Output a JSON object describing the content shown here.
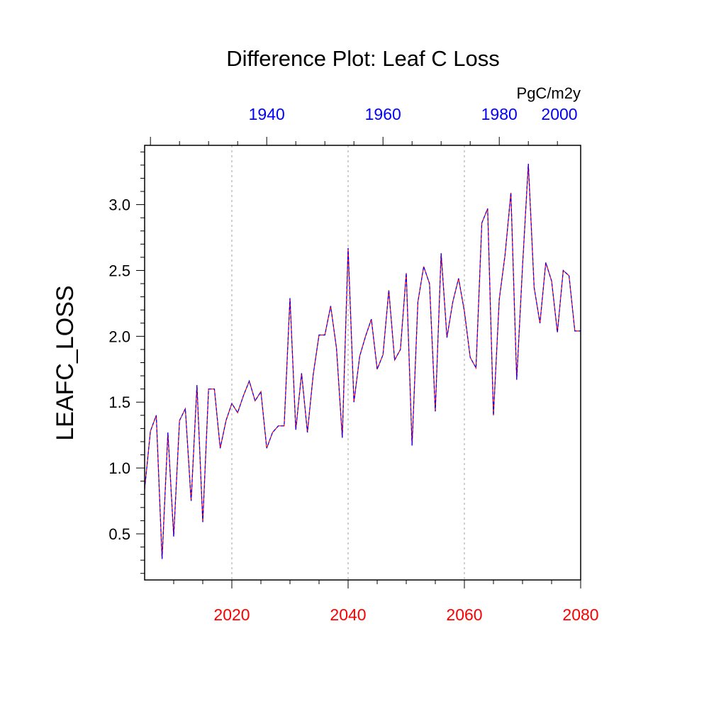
{
  "chart_data": {
    "type": "line",
    "title": "Difference Plot: Leaf C Loss",
    "units": "PgC/m2y",
    "ylabel": "LEAFC_LOSS",
    "xlabel": "",
    "xlim": [
      2005,
      2080
    ],
    "ylim": [
      0.15,
      3.45
    ],
    "x_ticks_bottom": [
      2020,
      2040,
      2060,
      2080
    ],
    "x_ticks_top": [
      {
        "label": "1940",
        "at": 2026
      },
      {
        "label": "1960",
        "at": 2046
      },
      {
        "label": "1980",
        "at": 2066
      },
      {
        "label": "2000",
        "at": 2086
      }
    ],
    "y_ticks": [
      {
        "value": 0.5,
        "label": "0.5"
      },
      {
        "value": 1.0,
        "label": "1.0"
      },
      {
        "value": 1.5,
        "label": "1.5"
      },
      {
        "value": 2.0,
        "label": "2.0"
      },
      {
        "value": 2.5,
        "label": "2.5"
      },
      {
        "value": 3.0,
        "label": "3.0"
      }
    ],
    "grid": "vertical dotted at bottom major ticks",
    "colors": {
      "bottom_axis": "#ff0000",
      "top_axis": "#0000ff",
      "series_a": "#ff0000",
      "series_b": "#0000ff",
      "axes": "#000000",
      "grid": "#a0a0a0"
    },
    "series": [
      {
        "x": [
          2005,
          2006,
          2007,
          2008,
          2009,
          2010,
          2011,
          2012,
          2013,
          2014,
          2015,
          2016,
          2017,
          2018,
          2019,
          2020,
          2021,
          2022,
          2023,
          2024,
          2025,
          2026,
          2027,
          2028,
          2029,
          2030,
          2031,
          2032,
          2033,
          2034,
          2035,
          2036,
          2037,
          2038,
          2039,
          2040,
          2041,
          2042,
          2043,
          2044,
          2045,
          2046,
          2047,
          2048,
          2049,
          2050,
          2051,
          2052,
          2053,
          2054,
          2055,
          2056,
          2057,
          2058,
          2059,
          2060,
          2061,
          2062,
          2063,
          2064,
          2065,
          2066,
          2067,
          2068,
          2069,
          2070,
          2071,
          2072,
          2073,
          2074,
          2075,
          2076,
          2077,
          2078,
          2079,
          2080
        ],
        "values": [
          0.84,
          1.28,
          1.4,
          0.31,
          1.27,
          0.48,
          1.36,
          1.45,
          0.75,
          1.63,
          0.59,
          1.6,
          1.6,
          1.15,
          1.36,
          1.49,
          1.42,
          1.55,
          1.66,
          1.51,
          1.58,
          1.15,
          1.27,
          1.32,
          1.32,
          2.29,
          1.29,
          1.72,
          1.27,
          1.71,
          2.01,
          2.01,
          2.23,
          1.91,
          1.23,
          2.67,
          1.5,
          1.85,
          2.0,
          2.13,
          1.75,
          1.86,
          2.35,
          1.82,
          1.9,
          2.48,
          1.17,
          2.26,
          2.53,
          2.4,
          1.43,
          2.63,
          1.99,
          2.26,
          2.44,
          2.19,
          1.84,
          1.76,
          2.86,
          2.97,
          1.4,
          2.28,
          2.62,
          3.09,
          1.67,
          2.53,
          3.31,
          2.37,
          2.1,
          2.56,
          2.42,
          2.03,
          2.5,
          2.46,
          2.04,
          2.04
        ]
      },
      {
        "x": [
          2005,
          2006,
          2007,
          2008,
          2009,
          2010,
          2011,
          2012,
          2013,
          2014,
          2015,
          2016,
          2017,
          2018,
          2019,
          2020,
          2021,
          2022,
          2023,
          2024,
          2025,
          2026,
          2027,
          2028,
          2029,
          2030,
          2031,
          2032,
          2033,
          2034,
          2035,
          2036,
          2037,
          2038,
          2039,
          2040,
          2041,
          2042,
          2043,
          2044,
          2045,
          2046,
          2047,
          2048,
          2049,
          2050,
          2051,
          2052,
          2053,
          2054,
          2055,
          2056,
          2057,
          2058,
          2059,
          2060,
          2061,
          2062,
          2063,
          2064,
          2065,
          2066,
          2067,
          2068,
          2069,
          2070,
          2071,
          2072,
          2073,
          2074,
          2075,
          2076,
          2077,
          2078,
          2079,
          2080
        ],
        "values": [
          0.84,
          1.28,
          1.4,
          0.31,
          1.27,
          0.48,
          1.36,
          1.45,
          0.75,
          1.63,
          0.59,
          1.6,
          1.6,
          1.15,
          1.36,
          1.49,
          1.42,
          1.55,
          1.66,
          1.51,
          1.58,
          1.15,
          1.27,
          1.32,
          1.32,
          2.29,
          1.29,
          1.72,
          1.27,
          1.71,
          2.01,
          2.01,
          2.23,
          1.91,
          1.23,
          2.67,
          1.5,
          1.85,
          2.0,
          2.13,
          1.75,
          1.86,
          2.35,
          1.82,
          1.9,
          2.48,
          1.17,
          2.26,
          2.53,
          2.4,
          1.43,
          2.63,
          1.99,
          2.26,
          2.44,
          2.19,
          1.84,
          1.76,
          2.86,
          2.97,
          1.4,
          2.28,
          2.62,
          3.09,
          1.67,
          2.53,
          3.31,
          2.37,
          2.1,
          2.56,
          2.42,
          2.03,
          2.5,
          2.46,
          2.04,
          2.04
        ]
      }
    ]
  }
}
